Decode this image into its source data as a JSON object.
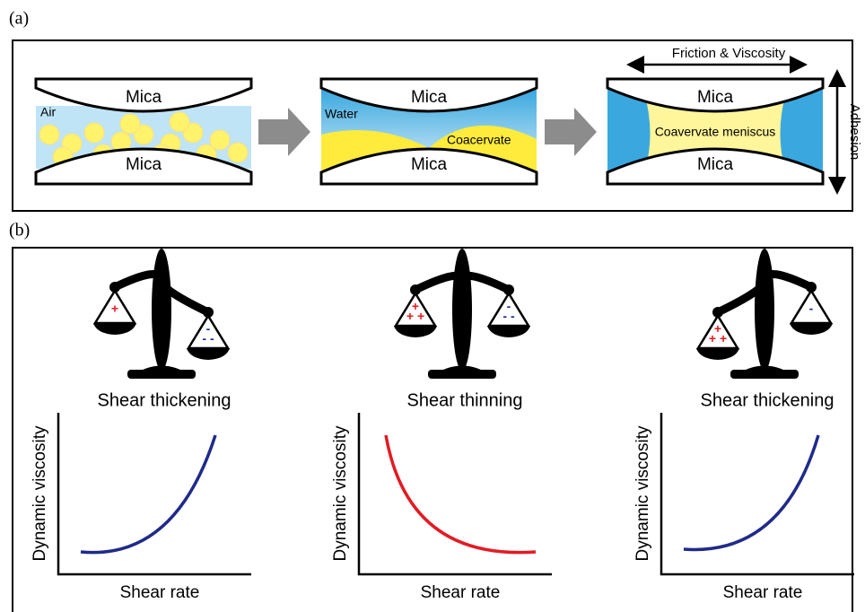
{
  "panel_a": {
    "label": "(a)",
    "stages": [
      {
        "top": "Mica",
        "bottom": "Mica",
        "labels": [
          "Air"
        ]
      },
      {
        "top": "Mica",
        "bottom": "Mica",
        "labels": [
          "Water",
          "Coacervate"
        ]
      },
      {
        "top": "Mica",
        "bottom": "Mica",
        "labels": [
          "Coavervate meniscus"
        ]
      }
    ],
    "friction": "Friction & Viscosity",
    "adhesion": "Adhesion"
  },
  "panel_b": {
    "label": "(b)",
    "plots": [
      {
        "title": "Shear thickening",
        "ylabel": "Dynamic viscosity",
        "xlabel": "Shear rate",
        "left_charges": [
          "+"
        ],
        "right_charges": [
          "-",
          "- -"
        ]
      },
      {
        "title": "Shear thinning",
        "ylabel": "Dynamic viscosity",
        "xlabel": "Shear rate",
        "left_charges": [
          "+",
          "+ +"
        ],
        "right_charges": [
          "-",
          "- -"
        ]
      },
      {
        "title": "Shear thickening",
        "ylabel": "Dynamic viscosity",
        "xlabel": "Shear rate",
        "left_charges": [
          "+",
          "+ +"
        ],
        "right_charges": [
          "-"
        ]
      }
    ]
  }
}
